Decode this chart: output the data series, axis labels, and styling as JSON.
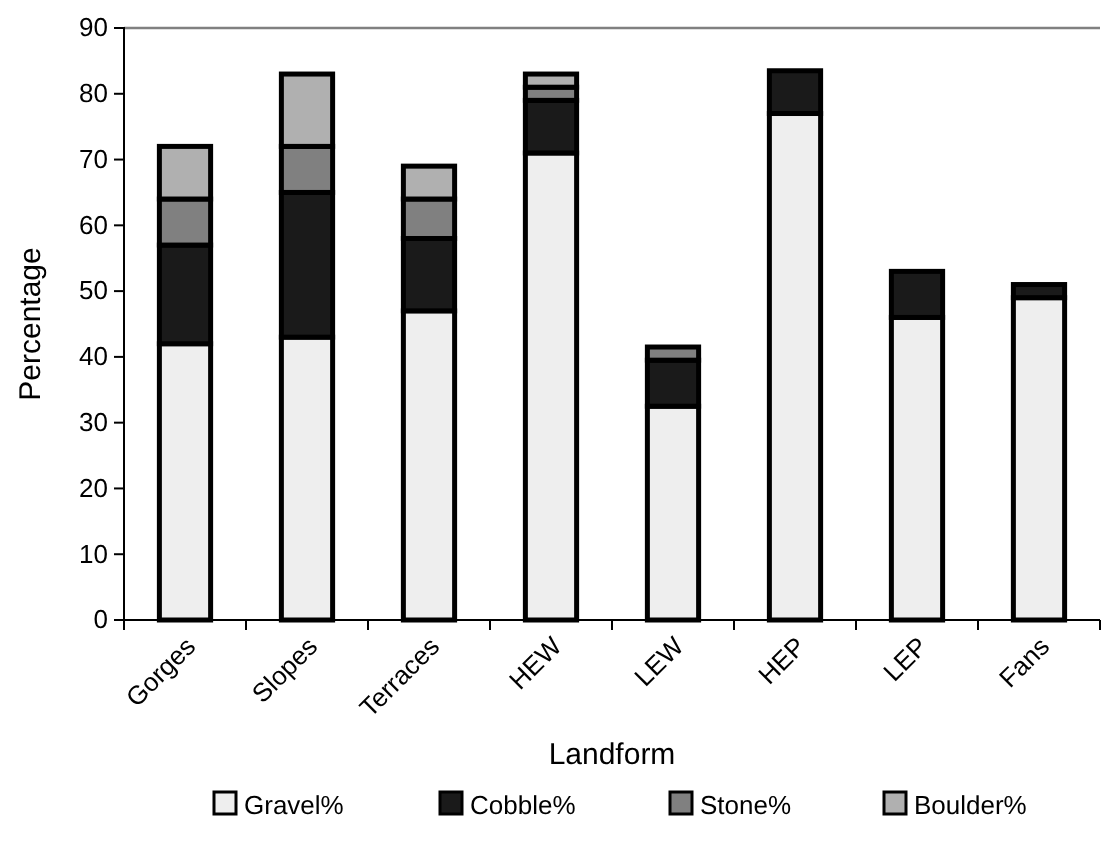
{
  "chart_data": {
    "type": "bar",
    "stacked": true,
    "xlabel": "Landform",
    "ylabel": "Percentage",
    "categories": [
      "Gorges",
      "Slopes",
      "Terraces",
      "HEW",
      "LEW",
      "HEP",
      "LEP",
      "Fans"
    ],
    "series": [
      {
        "name": "Gravel%",
        "color": "#eeeeee",
        "values": [
          42,
          43,
          47,
          71,
          32.5,
          77,
          46,
          49
        ]
      },
      {
        "name": "Cobble%",
        "color": "#1a1a1a",
        "values": [
          15,
          22,
          11,
          8,
          7,
          6.5,
          7,
          2
        ]
      },
      {
        "name": "Stone%",
        "color": "#808080",
        "values": [
          7,
          7,
          6,
          2,
          2,
          null,
          null,
          null
        ]
      },
      {
        "name": "Boulder%",
        "color": "#b0b0b0",
        "values": [
          8,
          11,
          5,
          2,
          null,
          null,
          null,
          null
        ]
      }
    ],
    "ylim": [
      0,
      90
    ],
    "yticks": [
      0,
      10,
      20,
      30,
      40,
      50,
      60,
      70,
      80,
      90
    ],
    "grid": false,
    "legend": "bottom"
  }
}
